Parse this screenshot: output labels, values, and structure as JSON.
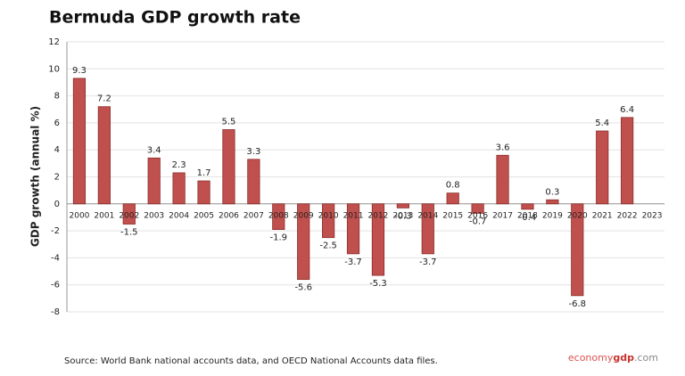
{
  "chart_data": {
    "type": "bar",
    "title": "Bermuda GDP growth rate",
    "y_label": "GDP growth (annual %)",
    "categories": [
      "2000",
      "2001",
      "2002",
      "2003",
      "2004",
      "2005",
      "2006",
      "2007",
      "2008",
      "2009",
      "2010",
      "2011",
      "2012",
      "2013",
      "2014",
      "2015",
      "2016",
      "2017",
      "2018",
      "2019",
      "2020",
      "2021",
      "2022",
      "2023"
    ],
    "values": [
      9.3,
      7.2,
      -1.5,
      3.4,
      2.3,
      1.7,
      5.5,
      3.3,
      -1.9,
      -5.6,
      -2.5,
      -3.7,
      -5.3,
      -0.3,
      -3.7,
      0.8,
      -0.7,
      3.6,
      -0.4,
      0.3,
      -6.8,
      5.4,
      6.4,
      null
    ],
    "color": "#c0504d",
    "ylim": [
      -8,
      12
    ],
    "yticks": [
      -8,
      -6,
      -4,
      -2,
      0,
      2,
      4,
      6,
      8,
      10,
      12
    ],
    "grid": true,
    "source": "Source: World Bank national accounts data, and OECD National Accounts data files.",
    "brand": [
      "economy",
      "gdp",
      ".com"
    ]
  }
}
